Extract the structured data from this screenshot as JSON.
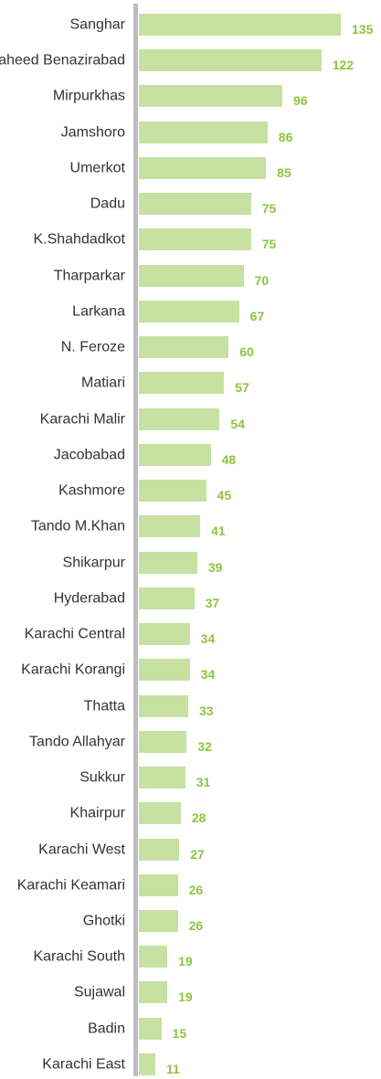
{
  "chart_data": {
    "type": "bar",
    "orientation": "horizontal",
    "categories": [
      "Sanghar",
      "Shaheed Benazirabad",
      "Mirpurkhas",
      "Jamshoro",
      "Umerkot",
      "Dadu",
      "K.Shahdadkot",
      "Tharparkar",
      "Larkana",
      "N. Feroze",
      "Matiari",
      "Karachi Malir",
      "Jacobabad",
      "Kashmore",
      "Tando M.Khan",
      "Shikarpur",
      "Hyderabad",
      "Karachi Central",
      "Karachi Korangi",
      "Thatta",
      "Tando Allahyar",
      "Sukkur",
      "Khairpur",
      "Karachi West",
      "Karachi Keamari",
      "Ghotki",
      "Karachi South",
      "Sujawal",
      "Badin",
      "Karachi East"
    ],
    "values": [
      135,
      122,
      96,
      86,
      85,
      75,
      75,
      70,
      67,
      60,
      57,
      54,
      48,
      45,
      41,
      39,
      37,
      34,
      34,
      33,
      32,
      31,
      28,
      27,
      26,
      26,
      19,
      19,
      15,
      11
    ],
    "color": "#c6e1a1",
    "label_color": "#8cc63f",
    "axis_color": "#bdbdbd"
  }
}
